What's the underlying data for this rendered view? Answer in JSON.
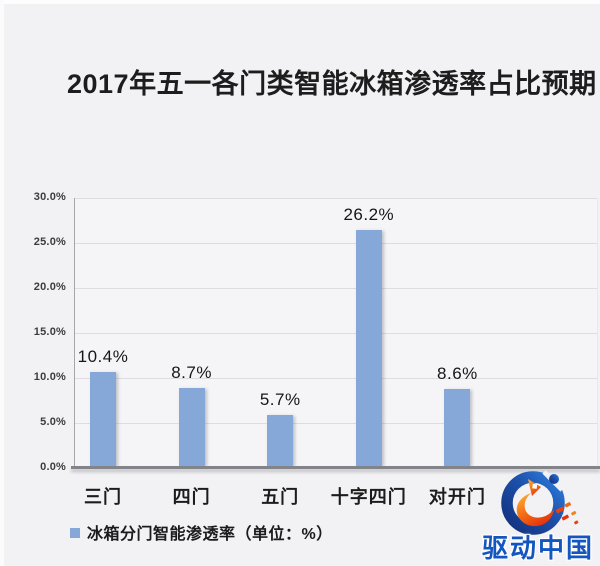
{
  "chart_data": {
    "type": "bar",
    "title": "2017年五一各门类智能冰箱渗透率占比预期",
    "categories": [
      "三门",
      "四门",
      "五门",
      "十字四门",
      "对开门"
    ],
    "values": [
      10.4,
      8.7,
      5.7,
      26.2,
      8.6
    ],
    "value_labels": [
      "10.4%",
      "8.7%",
      "5.7%",
      "26.2%",
      "8.6%"
    ],
    "legend": "冰箱分门智能渗透率（单位：%）",
    "xlabel": "",
    "ylabel": "",
    "ylim": [
      0,
      30
    ],
    "y_ticks": [
      "30.0%",
      "25.0%",
      "20.0%",
      "15.0%",
      "10.0%",
      "5.0%",
      "0.0%"
    ],
    "grid": "horizontal",
    "legend_position": "bottom-left",
    "bar_color": "#85a8d8"
  },
  "watermark": {
    "text": "驱动中国"
  }
}
